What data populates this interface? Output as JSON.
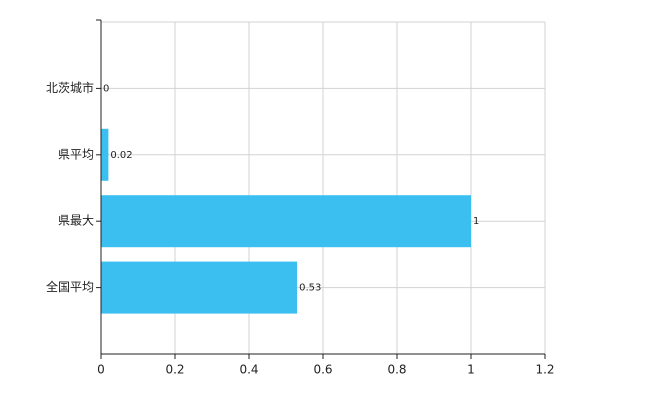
{
  "chart_data": {
    "type": "bar",
    "orientation": "horizontal",
    "categories": [
      "北茨城市",
      "県平均",
      "県最大",
      "全国平均"
    ],
    "values": [
      0,
      0.02,
      1,
      0.53
    ],
    "color": "#3bbff0",
    "xlim": [
      0,
      1.2
    ],
    "xticks": [
      0,
      0.2,
      0.4,
      0.6,
      0.8,
      1,
      1.2
    ],
    "grid": true
  }
}
